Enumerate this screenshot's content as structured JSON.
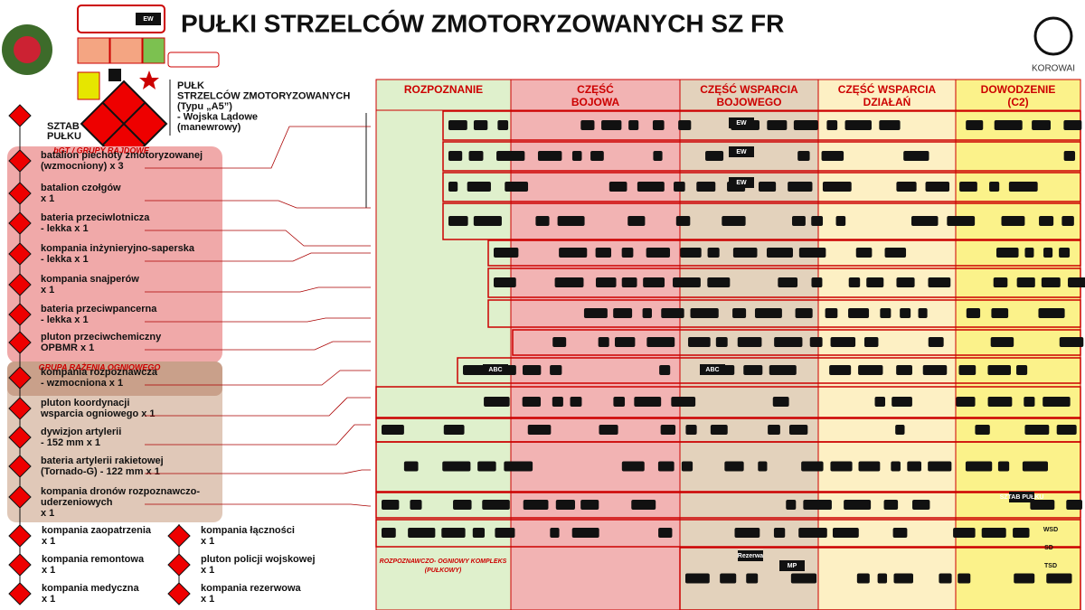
{
  "title": "PUŁKI STRZELCÓW ZMOTORYZOWANYCH SZ FR",
  "logo": "KOROWAI",
  "legend_labels": {
    "ew": "EW"
  },
  "regiment": {
    "lines": [
      "PUŁK",
      "STRZELCÓW ZMOTORYZOWANYCH",
      "(Typu „A5”)",
      "-     Wojska Lądowe",
      "(manewrowy)"
    ]
  },
  "hq": {
    "lines": [
      "SZTAB",
      "PUŁKU"
    ]
  },
  "groups": {
    "raid": "bGT / GRUPY RAJDOWE",
    "fire": "GRUPA RAŻENIA OGNIOWEGO"
  },
  "units": [
    {
      "lines": [
        "batalion piechoty zmotoryzowanej",
        "(wzmocniony) x 3"
      ]
    },
    {
      "lines": [
        "batalion czołgów",
        "x 1"
      ]
    },
    {
      "lines": [
        "bateria przeciwlotnicza",
        "- lekka x 1"
      ]
    },
    {
      "lines": [
        "kompania inżynieryjno-saperska",
        "- lekka x 1"
      ]
    },
    {
      "lines": [
        "kompania snajperów",
        "x 1"
      ]
    },
    {
      "lines": [
        "bateria przeciwpancerna",
        "- lekka x 1"
      ]
    },
    {
      "lines": [
        "pluton przeciwchemiczny",
        "OPBMR x 1"
      ]
    },
    {
      "lines": [
        "kompania rozpoznawcza",
        "- wzmocniona x 1"
      ]
    },
    {
      "lines": [
        "pluton koordynacji",
        "wsparcia ogniowego x 1"
      ]
    },
    {
      "lines": [
        "dywizjon artylerii",
        "- 152 mm x 1"
      ]
    },
    {
      "lines": [
        "bateria artylerii rakietowej",
        "(Tornado-G) - 122 mm x 1"
      ]
    },
    {
      "lines": [
        "kompania dronów rozpoznawczo-",
        "uderzeniowych",
        "x 1"
      ]
    }
  ],
  "support_units": [
    {
      "lines": [
        "kompania zaopatrzenia",
        "x 1"
      ]
    },
    {
      "lines": [
        "kompania remontowa",
        "x 1"
      ]
    },
    {
      "lines": [
        "kompania medyczna",
        "x 1"
      ]
    },
    {
      "lines": [
        "kompania łączności",
        "x 1"
      ]
    },
    {
      "lines": [
        "pluton policji wojskowej",
        "x 1"
      ]
    },
    {
      "lines": [
        "kompania rezerwowa",
        "x 1"
      ]
    }
  ],
  "columns": [
    {
      "lines": [
        "ROZPOZNANIE"
      ]
    },
    {
      "lines": [
        "CZĘŚĆ",
        "BOJOWA"
      ]
    },
    {
      "lines": [
        "CZĘŚĆ WSPARCIA",
        "BOJOWEGO"
      ]
    },
    {
      "lines": [
        "CZĘŚĆ WSPARCIA",
        "DZIAŁAŃ"
      ]
    },
    {
      "lines": [
        "DOWODZENIE",
        "(C2)"
      ]
    }
  ],
  "complex": {
    "lines": [
      "ROZPOZNAWCZO- OGNIOWY KOMPLEKS",
      "(PUŁKOWY)"
    ]
  },
  "icon_labels": {
    "ew": [
      "EW",
      "EW",
      "EW"
    ],
    "abc": [
      "ABC",
      "ABC"
    ],
    "mp": "MP",
    "reserve": "Rezerwa",
    "hq_small": "SZTAB PUŁKU",
    "wsd": "WSD",
    "sd": "SD",
    "tsd": "TSD"
  }
}
